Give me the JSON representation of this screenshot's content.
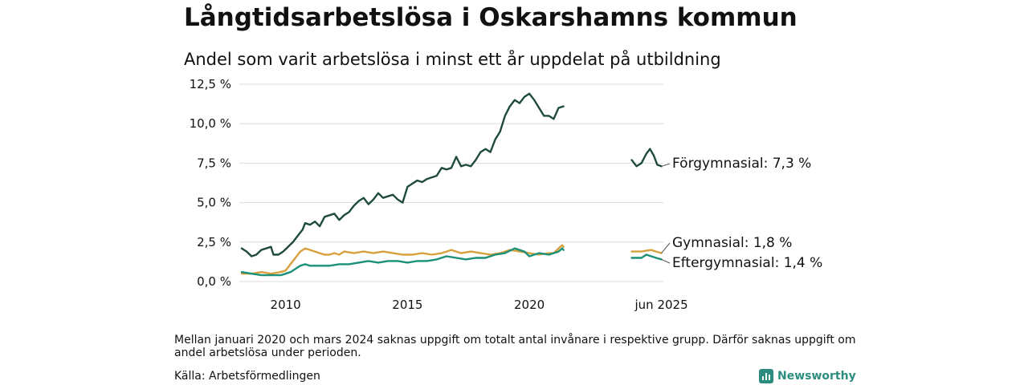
{
  "header": {
    "title": "Långtidsarbetslösa i Oskarshamns kommun",
    "subtitle": "Andel som varit arbetslösa i minst ett år uppdelat på utbildning"
  },
  "footer": {
    "note": "Mellan januari 2020 och mars 2024 saknas uppgift om totalt antal invånare i respektive grupp. Därför saknas uppgift om andel arbetslösa under perioden.",
    "source": "Källa: Arbetsförmedlingen",
    "brand": "Newsworthy",
    "brand_icon": "newsworthy-logo-icon"
  },
  "chart_data": {
    "type": "line",
    "x_tick_labels": [
      {
        "x": 2010,
        "label": "2010"
      },
      {
        "x": 2015,
        "label": "2015"
      },
      {
        "x": 2020,
        "label": "2020"
      },
      {
        "x": 2025.42,
        "label": "jun 2025"
      }
    ],
    "y_tick_labels": [
      {
        "y": 0,
        "label": "0,0 %"
      },
      {
        "y": 2.5,
        "label": "2,5 %"
      },
      {
        "y": 5,
        "label": "5,0 %"
      },
      {
        "y": 7.5,
        "label": "7,5 %"
      },
      {
        "y": 10,
        "label": "10,0 %"
      },
      {
        "y": 12.5,
        "label": "12,5 %"
      }
    ],
    "xlim": [
      2008.1,
      2025.5
    ],
    "ylim": [
      0,
      12.5
    ],
    "grid": "horizontal",
    "series": [
      {
        "name": "Förgymnasial",
        "end_label": "Förgymnasial: 7,3 %",
        "color": "#1f4a3f",
        "segments": [
          [
            [
              2008.2,
              2.1
            ],
            [
              2008.4,
              1.9
            ],
            [
              2008.6,
              1.6
            ],
            [
              2008.8,
              1.7
            ],
            [
              2009.0,
              2.0
            ],
            [
              2009.2,
              2.1
            ],
            [
              2009.4,
              2.2
            ],
            [
              2009.5,
              1.7
            ],
            [
              2009.7,
              1.7
            ],
            [
              2009.9,
              1.9
            ],
            [
              2010.1,
              2.2
            ],
            [
              2010.3,
              2.5
            ],
            [
              2010.5,
              2.9
            ],
            [
              2010.7,
              3.3
            ],
            [
              2010.8,
              3.7
            ],
            [
              2011.0,
              3.6
            ],
            [
              2011.2,
              3.8
            ],
            [
              2011.4,
              3.5
            ],
            [
              2011.6,
              4.1
            ],
            [
              2011.8,
              4.2
            ],
            [
              2012.0,
              4.3
            ],
            [
              2012.2,
              3.9
            ],
            [
              2012.4,
              4.2
            ],
            [
              2012.6,
              4.4
            ],
            [
              2012.8,
              4.8
            ],
            [
              2013.0,
              5.1
            ],
            [
              2013.2,
              5.3
            ],
            [
              2013.4,
              4.9
            ],
            [
              2013.6,
              5.2
            ],
            [
              2013.8,
              5.6
            ],
            [
              2014.0,
              5.3
            ],
            [
              2014.2,
              5.4
            ],
            [
              2014.4,
              5.5
            ],
            [
              2014.6,
              5.2
            ],
            [
              2014.8,
              5.0
            ],
            [
              2015.0,
              6.0
            ],
            [
              2015.2,
              6.2
            ],
            [
              2015.4,
              6.4
            ],
            [
              2015.6,
              6.3
            ],
            [
              2015.8,
              6.5
            ],
            [
              2016.0,
              6.6
            ],
            [
              2016.2,
              6.7
            ],
            [
              2016.4,
              7.2
            ],
            [
              2016.6,
              7.1
            ],
            [
              2016.8,
              7.2
            ],
            [
              2017.0,
              7.9
            ],
            [
              2017.2,
              7.3
            ],
            [
              2017.4,
              7.4
            ],
            [
              2017.6,
              7.3
            ],
            [
              2017.8,
              7.7
            ],
            [
              2018.0,
              8.2
            ],
            [
              2018.2,
              8.4
            ],
            [
              2018.4,
              8.2
            ],
            [
              2018.6,
              9.0
            ],
            [
              2018.8,
              9.5
            ],
            [
              2019.0,
              10.5
            ],
            [
              2019.2,
              11.1
            ],
            [
              2019.4,
              11.5
            ],
            [
              2019.6,
              11.3
            ],
            [
              2019.8,
              11.7
            ],
            [
              2020.0,
              11.9
            ],
            [
              2020.2,
              11.5
            ],
            [
              2020.4,
              11.0
            ],
            [
              2020.6,
              10.5
            ],
            [
              2020.8,
              10.5
            ],
            [
              2021.0,
              10.3
            ],
            [
              2021.2,
              11.0
            ],
            [
              2021.4,
              11.1
            ]
          ],
          [
            [
              2024.2,
              7.7
            ],
            [
              2024.4,
              7.3
            ],
            [
              2024.6,
              7.5
            ],
            [
              2024.8,
              8.1
            ],
            [
              2024.95,
              8.4
            ],
            [
              2025.1,
              8.0
            ],
            [
              2025.25,
              7.4
            ],
            [
              2025.42,
              7.3
            ]
          ]
        ]
      },
      {
        "name": "Gymnasial",
        "end_label": "Gymnasial: 1,8 %",
        "color": "#d7a03c",
        "segments": [
          [
            [
              2008.2,
              0.5
            ],
            [
              2008.6,
              0.5
            ],
            [
              2009.0,
              0.6
            ],
            [
              2009.4,
              0.5
            ],
            [
              2009.8,
              0.6
            ],
            [
              2010.0,
              0.7
            ],
            [
              2010.2,
              1.1
            ],
            [
              2010.4,
              1.5
            ],
            [
              2010.6,
              1.9
            ],
            [
              2010.8,
              2.1
            ],
            [
              2011.0,
              2.0
            ],
            [
              2011.2,
              1.9
            ],
            [
              2011.4,
              1.8
            ],
            [
              2011.6,
              1.7
            ],
            [
              2011.8,
              1.7
            ],
            [
              2012.0,
              1.8
            ],
            [
              2012.2,
              1.7
            ],
            [
              2012.4,
              1.9
            ],
            [
              2012.8,
              1.8
            ],
            [
              2013.2,
              1.9
            ],
            [
              2013.6,
              1.8
            ],
            [
              2014.0,
              1.9
            ],
            [
              2014.4,
              1.8
            ],
            [
              2014.8,
              1.7
            ],
            [
              2015.2,
              1.7
            ],
            [
              2015.6,
              1.8
            ],
            [
              2016.0,
              1.7
            ],
            [
              2016.4,
              1.8
            ],
            [
              2016.8,
              2.0
            ],
            [
              2017.2,
              1.8
            ],
            [
              2017.6,
              1.9
            ],
            [
              2018.0,
              1.8
            ],
            [
              2018.4,
              1.7
            ],
            [
              2018.8,
              1.8
            ],
            [
              2019.2,
              2.0
            ],
            [
              2019.6,
              1.9
            ],
            [
              2020.0,
              1.8
            ],
            [
              2020.4,
              1.7
            ],
            [
              2020.8,
              1.8
            ],
            [
              2021.0,
              1.8
            ],
            [
              2021.2,
              2.1
            ],
            [
              2021.35,
              2.3
            ],
            [
              2021.4,
              2.2
            ]
          ],
          [
            [
              2024.2,
              1.9
            ],
            [
              2024.6,
              1.9
            ],
            [
              2025.0,
              2.0
            ],
            [
              2025.2,
              1.9
            ],
            [
              2025.42,
              1.8
            ]
          ]
        ]
      },
      {
        "name": "Eftergymnasial",
        "end_label": "Eftergymnasial: 1,4 %",
        "color": "#1a9079",
        "segments": [
          [
            [
              2008.2,
              0.6
            ],
            [
              2008.6,
              0.5
            ],
            [
              2009.0,
              0.4
            ],
            [
              2009.4,
              0.4
            ],
            [
              2009.8,
              0.4
            ],
            [
              2010.0,
              0.5
            ],
            [
              2010.2,
              0.6
            ],
            [
              2010.4,
              0.8
            ],
            [
              2010.6,
              1.0
            ],
            [
              2010.8,
              1.1
            ],
            [
              2011.0,
              1.0
            ],
            [
              2011.4,
              1.0
            ],
            [
              2011.8,
              1.0
            ],
            [
              2012.2,
              1.1
            ],
            [
              2012.6,
              1.1
            ],
            [
              2013.0,
              1.2
            ],
            [
              2013.4,
              1.3
            ],
            [
              2013.8,
              1.2
            ],
            [
              2014.2,
              1.3
            ],
            [
              2014.6,
              1.3
            ],
            [
              2015.0,
              1.2
            ],
            [
              2015.4,
              1.3
            ],
            [
              2015.8,
              1.3
            ],
            [
              2016.2,
              1.4
            ],
            [
              2016.6,
              1.6
            ],
            [
              2017.0,
              1.5
            ],
            [
              2017.4,
              1.4
            ],
            [
              2017.8,
              1.5
            ],
            [
              2018.2,
              1.5
            ],
            [
              2018.6,
              1.7
            ],
            [
              2019.0,
              1.8
            ],
            [
              2019.4,
              2.1
            ],
            [
              2019.8,
              1.9
            ],
            [
              2020.0,
              1.6
            ],
            [
              2020.4,
              1.8
            ],
            [
              2020.8,
              1.7
            ],
            [
              2021.0,
              1.8
            ],
            [
              2021.2,
              1.9
            ],
            [
              2021.35,
              2.1
            ],
            [
              2021.4,
              2.0
            ]
          ],
          [
            [
              2024.2,
              1.5
            ],
            [
              2024.6,
              1.5
            ],
            [
              2024.8,
              1.7
            ],
            [
              2025.0,
              1.6
            ],
            [
              2025.2,
              1.5
            ],
            [
              2025.42,
              1.4
            ]
          ]
        ]
      }
    ]
  }
}
